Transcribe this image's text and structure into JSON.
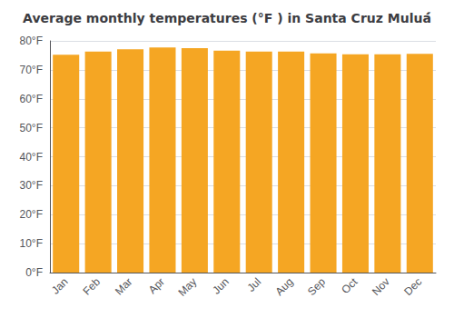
{
  "chart_data": {
    "type": "bar",
    "title": "Average monthly temperatures (°F ) in Santa Cruz Muluá́",
    "categories": [
      "Jan",
      "Feb",
      "Mar",
      "Apr",
      "May",
      "Jun",
      "Jul",
      "Aug",
      "Sep",
      "Oct",
      "Nov",
      "Dec"
    ],
    "values": [
      75.2,
      76.3,
      77.1,
      77.7,
      77.5,
      76.6,
      76.3,
      76.3,
      75.7,
      75.4,
      75.4,
      75.5
    ],
    "color": "#F5A623",
    "ylim": [
      0,
      80
    ],
    "yticks": [
      {
        "value": 0,
        "label": "0°F"
      },
      {
        "value": 10,
        "label": "10°F"
      },
      {
        "value": 20,
        "label": "20°F"
      },
      {
        "value": 30,
        "label": "30°F"
      },
      {
        "value": 40,
        "label": "40°F"
      },
      {
        "value": 50,
        "label": "50°F"
      },
      {
        "value": 60,
        "label": "60°F"
      },
      {
        "value": 70,
        "label": "70°F"
      },
      {
        "value": 80,
        "label": "80°F"
      }
    ],
    "grid": true
  }
}
